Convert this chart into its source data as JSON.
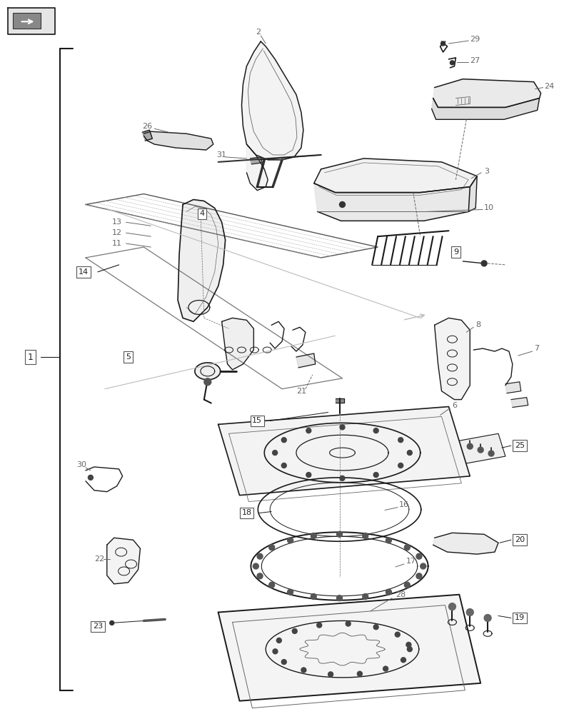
{
  "bg_color": "#ffffff",
  "lc": "#1a1a1a",
  "gray": "#666666",
  "lgray": "#aaaaaa",
  "dgray": "#333333",
  "fig_w": 8.12,
  "fig_h": 10.0,
  "dpi": 100
}
